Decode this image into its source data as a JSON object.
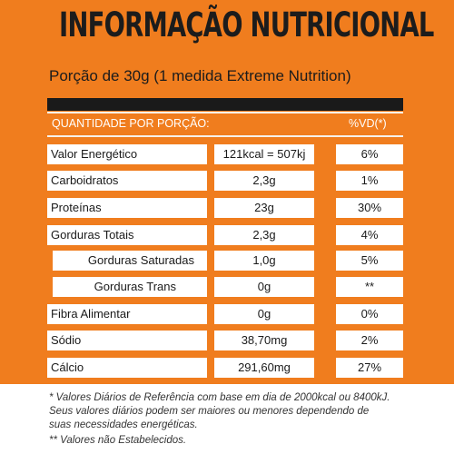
{
  "title": "INFORMAÇÃO NUTRICIONAL",
  "subtitle": "Porção de 30g (1 medida Extreme Nutrition)",
  "header": {
    "left": "QUANTIDADE POR PORÇÃO:",
    "right": "%VD(*)"
  },
  "rows": [
    {
      "name": "Valor Energético",
      "qty": "121kcal = 507kj",
      "vd": "6%"
    },
    {
      "name": "Carboidratos",
      "qty": "2,3g",
      "vd": "1%"
    },
    {
      "name": "Proteínas",
      "qty": "23g",
      "vd": "30%"
    },
    {
      "name": "Gorduras Totais",
      "qty": "2,3g",
      "vd": "4%"
    },
    {
      "name": "Gorduras Saturadas",
      "qty": "1,0g",
      "vd": "5%"
    },
    {
      "name": "Gorduras Trans",
      "qty": "0g",
      "vd": "**"
    },
    {
      "name": "Fibra Alimentar",
      "qty": "0g",
      "vd": "0%"
    },
    {
      "name": "Sódio",
      "qty": "38,70mg",
      "vd": "2%"
    },
    {
      "name": "Cálcio",
      "qty": "291,60mg",
      "vd": "27%"
    }
  ],
  "footnotes": [
    "* Valores Diários de Referência com base em dia de 2000kcal ou 8400kJ.",
    "Seus valores diários podem ser maiores ou menores dependendo de",
    "suas necessidades energéticas.",
    "** Valores não Estabelecidos."
  ]
}
